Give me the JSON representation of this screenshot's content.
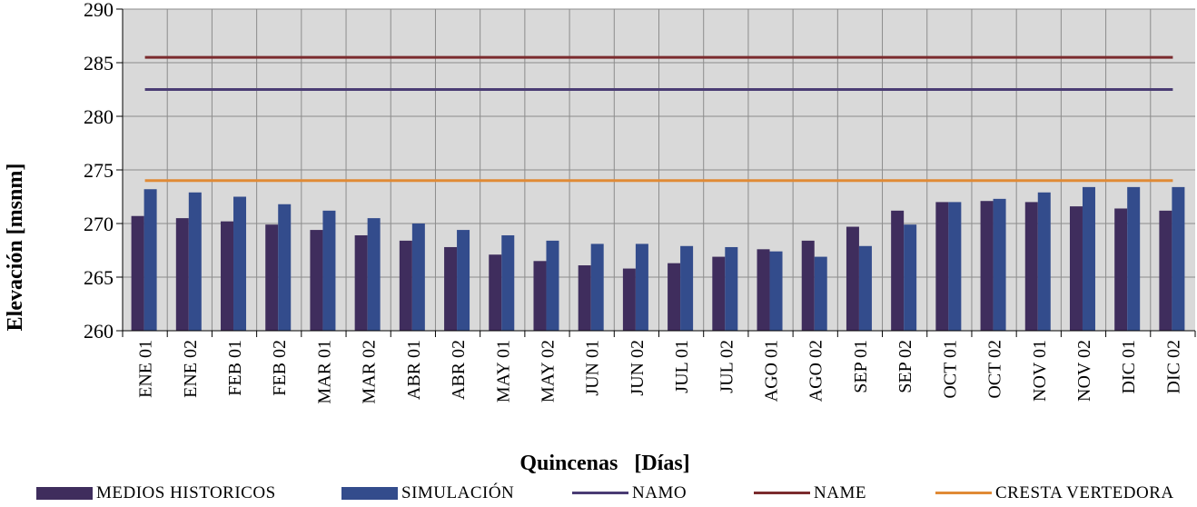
{
  "chart_data": {
    "type": "bar",
    "title": "",
    "xlabel": "Quincenas   [Días]",
    "ylabel": "Elevación  [msnm]",
    "ylim": [
      260,
      290
    ],
    "yticks": [
      260,
      265,
      270,
      275,
      280,
      285,
      290
    ],
    "grid": true,
    "legend_position": "bottom",
    "categories": [
      "ENE 01",
      "ENE 02",
      "FEB 01",
      "FEB 02",
      "MAR 01",
      "MAR 02",
      "ABR 01",
      "ABR 02",
      "MAY 01",
      "MAY 02",
      "JUN 01",
      "JUN 02",
      "JUL 01",
      "JUL 02",
      "AGO 01",
      "AGO 02",
      "SEP 01",
      "SEP 02",
      "OCT 01",
      "OCT 02",
      "NOV 01",
      "NOV 02",
      "DIC 01",
      "DIC 02"
    ],
    "series": [
      {
        "name": "MEDIOS HISTORICOS",
        "kind": "bar",
        "color": "#3f2d5d",
        "values": [
          270.7,
          270.5,
          270.2,
          269.9,
          269.4,
          268.9,
          268.4,
          267.8,
          267.1,
          266.5,
          266.1,
          265.8,
          266.3,
          266.9,
          267.6,
          268.4,
          269.7,
          271.2,
          272.0,
          272.1,
          272.0,
          271.6,
          271.4,
          271.2
        ]
      },
      {
        "name": "SIMULACIÓN",
        "kind": "bar",
        "color": "#334c8c",
        "values": [
          273.2,
          272.9,
          272.5,
          271.8,
          271.2,
          270.5,
          270.0,
          269.4,
          268.9,
          268.4,
          268.1,
          268.1,
          267.9,
          267.8,
          267.4,
          266.9,
          267.9,
          269.9,
          272.0,
          272.3,
          272.9,
          273.4,
          273.4,
          273.4
        ]
      },
      {
        "name": "NAMO",
        "kind": "line",
        "color": "#4a3c74",
        "value": 282.5
      },
      {
        "name": "NAME",
        "kind": "line",
        "color": "#7b2b2e",
        "value": 285.5
      },
      {
        "name": "CRESTA VERTEDORA",
        "kind": "line",
        "color": "#e08a36",
        "value": 274.0
      }
    ],
    "colors": {
      "plot_background": "#d9d9d9",
      "grid": "#8c8c8c",
      "axis": "#000000"
    }
  }
}
